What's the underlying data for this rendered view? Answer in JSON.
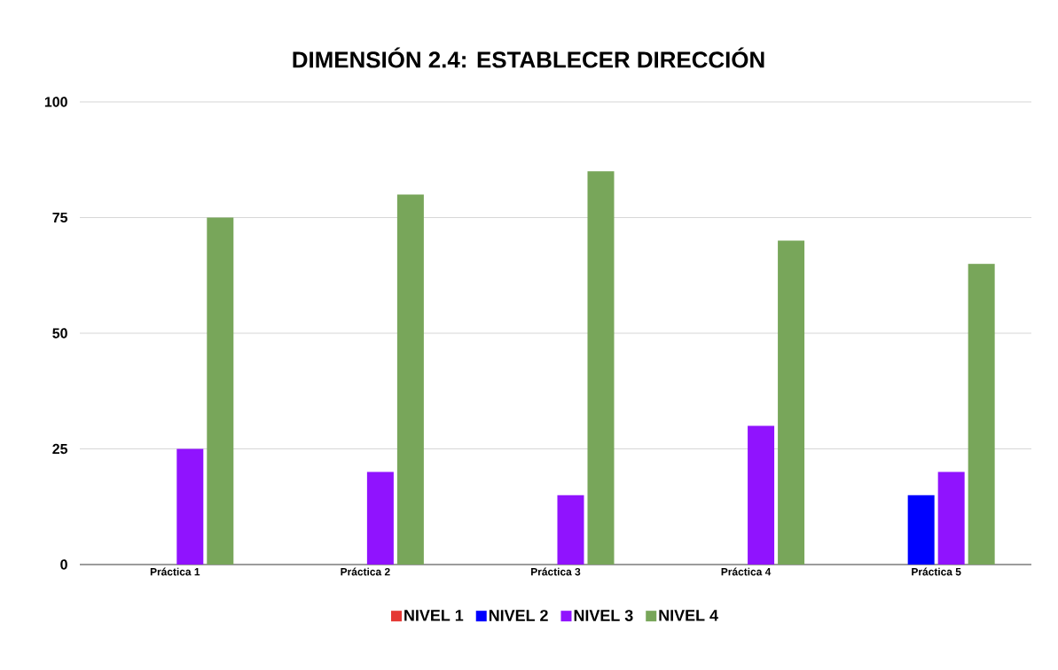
{
  "chart_data": {
    "type": "bar",
    "title": "DIMENSIÓN 2.4: ESTABLECER DIRECCIÓN",
    "categories": [
      "Práctica 1",
      "Práctica 2",
      "Práctica 3",
      "Práctica 4",
      "Práctica 5"
    ],
    "series": [
      {
        "name": "NIVEL 1",
        "color": "#e53935",
        "values": [
          0,
          0,
          0,
          0,
          0
        ]
      },
      {
        "name": "NIVEL 2",
        "color": "#0000ff",
        "values": [
          0,
          0,
          0,
          0,
          15
        ]
      },
      {
        "name": "NIVEL 3",
        "color": "#9013fe",
        "values": [
          25,
          20,
          15,
          30,
          20
        ]
      },
      {
        "name": "NIVEL 4",
        "color": "#78a65a",
        "values": [
          75,
          80,
          85,
          70,
          65
        ]
      }
    ],
    "ylim": [
      0,
      100
    ],
    "yticks": [
      0,
      25,
      50,
      75,
      100
    ],
    "grid": "y",
    "legend": "bottom"
  }
}
